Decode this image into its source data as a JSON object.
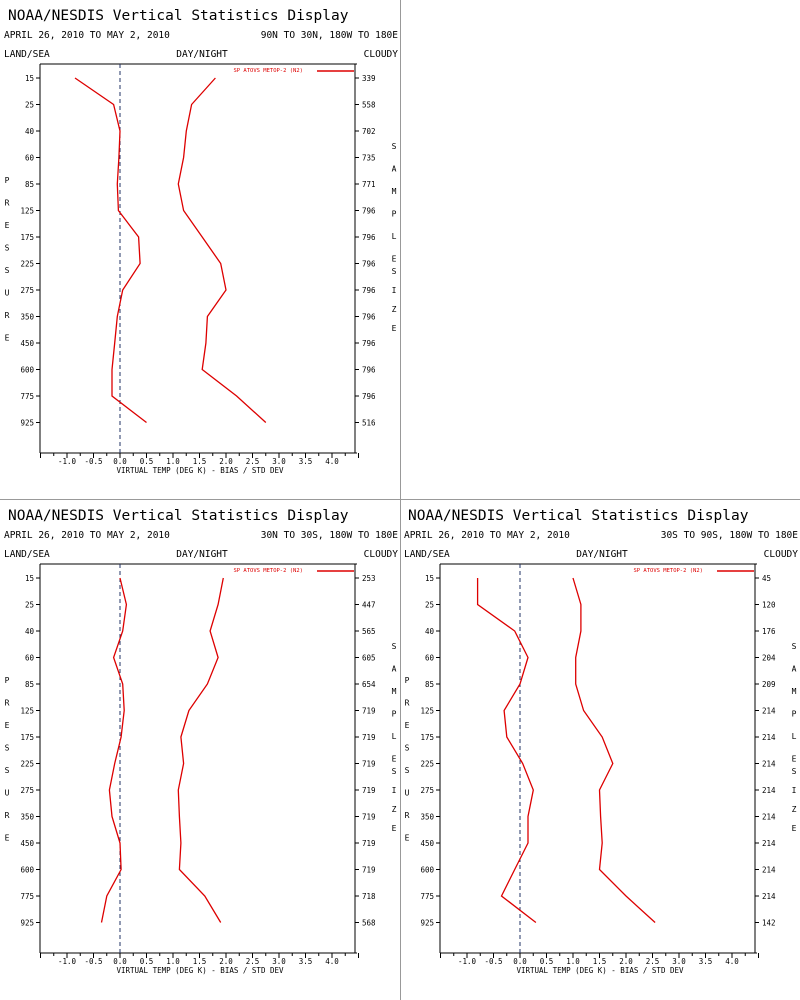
{
  "colors": {
    "series": "#dd0000",
    "axis": "#000000",
    "zero_line": "#223366",
    "divider": "#999999"
  },
  "chart_data": [
    {
      "type": "line",
      "title": "NOAA/NESDIS Vertical Statistics Display",
      "date_range": "APRIL 26, 2010 TO MAY 2, 2010",
      "region": "90N TO 30N, 180W TO 180E",
      "header_left": "LAND/SEA",
      "header_center": "DAY/NIGHT",
      "header_right": "CLOUDY",
      "ylabel": "PRESSURE",
      "right_label": "SAMPLE SIZE",
      "xlabel": "VIRTUAL TEMP (DEG K) - BIAS / STD DEV",
      "xlim": [
        -1.5,
        4.5
      ],
      "x_ticks": [
        "-1.0",
        "-0.5",
        "0.0",
        "0.5",
        "1.0",
        "1.5",
        "2.0",
        "2.5",
        "3.0",
        "3.5",
        "4.0"
      ],
      "pressure_levels": [
        "15",
        "25",
        "40",
        "60",
        "85",
        "125",
        "175",
        "225",
        "275",
        "350",
        "450",
        "600",
        "775",
        "925"
      ],
      "sample_sizes": [
        "339",
        "558",
        "702",
        "735",
        "771",
        "796",
        "796",
        "796",
        "796",
        "796",
        "796",
        "796",
        "796",
        "516"
      ],
      "series": [
        {
          "name": "SP ATOVS METOP-2 (N2)",
          "kind": "bias",
          "values": [
            -0.85,
            -0.12,
            0.0,
            -0.02,
            -0.05,
            -0.03,
            0.35,
            0.38,
            0.05,
            -0.05,
            -0.1,
            -0.15,
            -0.15,
            0.5
          ]
        },
        {
          "name": "SP ATOVS METOP-2 (N2)",
          "kind": "std_dev",
          "values": [
            1.8,
            1.35,
            1.25,
            1.2,
            1.1,
            1.2,
            1.55,
            1.9,
            2.0,
            1.65,
            1.62,
            1.55,
            2.2,
            2.75
          ]
        }
      ]
    },
    {
      "type": "line",
      "title": "NOAA/NESDIS Vertical Statistics Display",
      "date_range": "APRIL 26, 2010 TO MAY 2, 2010",
      "region": "30N TO 30S, 180W TO 180E",
      "header_left": "LAND/SEA",
      "header_center": "DAY/NIGHT",
      "header_right": "CLOUDY",
      "ylabel": "PRESSURE",
      "right_label": "SAMPLE SIZE",
      "xlabel": "VIRTUAL TEMP (DEG K) - BIAS / STD DEV",
      "xlim": [
        -1.5,
        4.5
      ],
      "x_ticks": [
        "-1.0",
        "-0.5",
        "0.0",
        "0.5",
        "1.0",
        "1.5",
        "2.0",
        "2.5",
        "3.0",
        "3.5",
        "4.0"
      ],
      "pressure_levels": [
        "15",
        "25",
        "40",
        "60",
        "85",
        "125",
        "175",
        "225",
        "275",
        "350",
        "450",
        "600",
        "775",
        "925"
      ],
      "sample_sizes": [
        "253",
        "447",
        "565",
        "605",
        "654",
        "719",
        "719",
        "719",
        "719",
        "719",
        "719",
        "719",
        "718",
        "568"
      ],
      "series": [
        {
          "name": "SP ATOVS METOP-2 (N2)",
          "kind": "bias",
          "values": [
            0.0,
            0.12,
            0.05,
            -0.12,
            0.05,
            0.08,
            0.02,
            -0.1,
            -0.2,
            -0.15,
            0.0,
            0.02,
            -0.25,
            -0.35
          ]
        },
        {
          "name": "SP ATOVS METOP-2 (N2)",
          "kind": "std_dev",
          "values": [
            1.95,
            1.85,
            1.7,
            1.85,
            1.65,
            1.3,
            1.15,
            1.2,
            1.1,
            1.12,
            1.15,
            1.12,
            1.6,
            1.9
          ]
        }
      ]
    },
    {
      "type": "line",
      "title": "NOAA/NESDIS Vertical Statistics Display",
      "date_range": "APRIL 26, 2010 TO MAY 2, 2010",
      "region": "30S TO 90S, 180W TO 180E",
      "header_left": "LAND/SEA",
      "header_center": "DAY/NIGHT",
      "header_right": "CLOUDY",
      "ylabel": "PRESSURE",
      "right_label": "SAMPLE SIZE",
      "xlabel": "VIRTUAL TEMP (DEG K) - BIAS / STD DEV",
      "xlim": [
        -1.5,
        4.5
      ],
      "x_ticks": [
        "-1.0",
        "-0.5",
        "0.0",
        "0.5",
        "1.0",
        "1.5",
        "2.0",
        "2.5",
        "3.0",
        "3.5",
        "4.0"
      ],
      "pressure_levels": [
        "15",
        "25",
        "40",
        "60",
        "85",
        "125",
        "175",
        "225",
        "275",
        "350",
        "450",
        "600",
        "775",
        "925"
      ],
      "sample_sizes": [
        "45",
        "120",
        "176",
        "204",
        "209",
        "214",
        "214",
        "214",
        "214",
        "214",
        "214",
        "214",
        "214",
        "142"
      ],
      "series": [
        {
          "name": "SP ATOVS METOP-2 (N2)",
          "kind": "bias",
          "values": [
            -0.8,
            -0.8,
            -0.1,
            0.15,
            0.0,
            -0.3,
            -0.25,
            0.05,
            0.25,
            0.15,
            0.15,
            -0.1,
            -0.35,
            0.3
          ]
        },
        {
          "name": "SP ATOVS METOP-2 (N2)",
          "kind": "std_dev",
          "values": [
            1.0,
            1.15,
            1.15,
            1.05,
            1.05,
            1.2,
            1.55,
            1.75,
            1.5,
            1.52,
            1.55,
            1.5,
            2.0,
            2.55
          ]
        }
      ]
    }
  ]
}
